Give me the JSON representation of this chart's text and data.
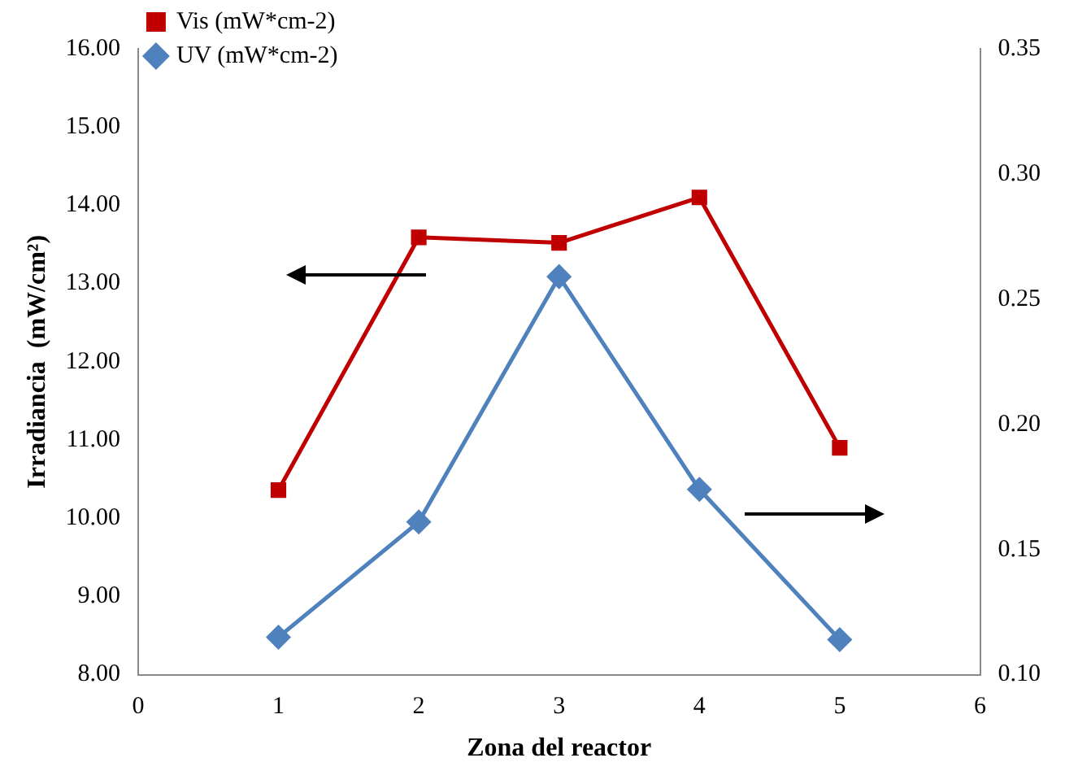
{
  "chart_data": {
    "type": "line",
    "xlabel": "Zona del reactor",
    "ylabel": "Irradiancia  (mW/cm²)",
    "x": [
      1,
      2,
      3,
      4,
      5
    ],
    "xlim": [
      0,
      6
    ],
    "xticks": [
      0,
      1,
      2,
      3,
      4,
      5,
      6
    ],
    "ylim": [
      8,
      16
    ],
    "yticks": [
      {
        "value": 8,
        "label": "8.00"
      },
      {
        "value": 9,
        "label": "9.00"
      },
      {
        "value": 10,
        "label": "10.00"
      },
      {
        "value": 11,
        "label": "11.00"
      },
      {
        "value": 12,
        "label": "12.00"
      },
      {
        "value": 13,
        "label": "13.00"
      },
      {
        "value": 14,
        "label": "14.00"
      },
      {
        "value": 15,
        "label": "15.00"
      },
      {
        "value": 16,
        "label": "16.00"
      }
    ],
    "y2lim": [
      0.1,
      0.35
    ],
    "y2ticks": [
      {
        "value": 0.1,
        "label": "0.10"
      },
      {
        "value": 0.15,
        "label": "0.15"
      },
      {
        "value": 0.2,
        "label": "0.20"
      },
      {
        "value": 0.25,
        "label": "0.25"
      },
      {
        "value": 0.3,
        "label": "0.30"
      },
      {
        "value": 0.35,
        "label": "0.35"
      }
    ],
    "grid": false,
    "legend": "top left",
    "line_style": "solid",
    "series": [
      {
        "name": "Vis (mW*cm-2)",
        "color": "#c00000",
        "marker": "square",
        "values": [
          10.36,
          13.59,
          13.52,
          14.1,
          10.9
        ]
      },
      {
        "name": "UV (mW*cm-2)",
        "color": "#4f81bd",
        "marker": "diamond",
        "axis": "y2",
        "values": [
          0.115,
          0.161,
          0.259,
          0.174,
          0.114
        ]
      }
    ]
  }
}
